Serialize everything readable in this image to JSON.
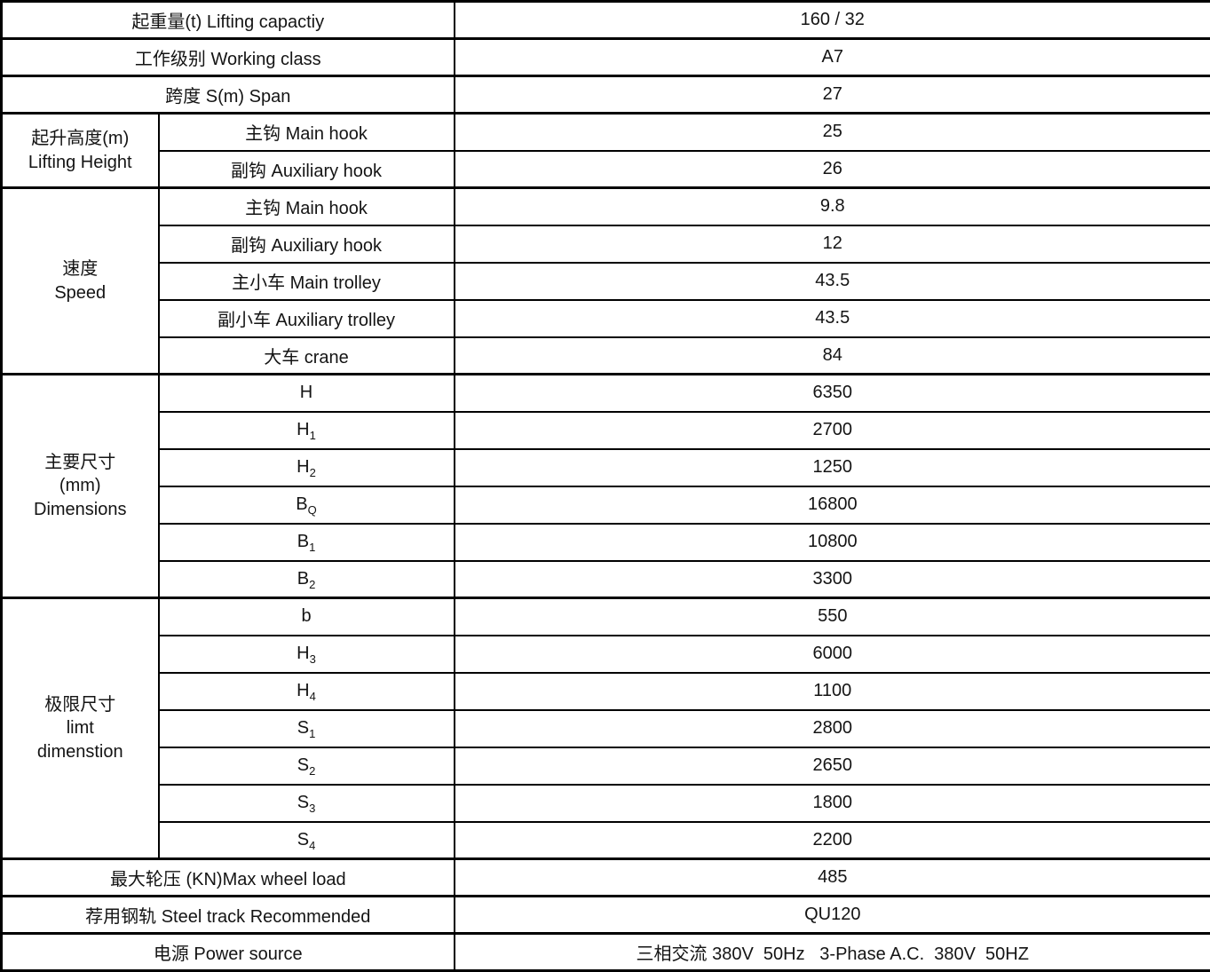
{
  "colors": {
    "border": "#000000",
    "text": "#141414",
    "background": "#ffffff"
  },
  "table": {
    "sections": [
      {
        "key": "lifting-capacity",
        "label": "起重量(t) Lifting capactiy",
        "value": "160 / 32"
      },
      {
        "key": "working-class",
        "label": "工作级别 Working class",
        "value": "A7"
      },
      {
        "key": "span",
        "label": "跨度 S(m) Span",
        "value": "27"
      },
      {
        "key": "lifting-height",
        "label_lines": [
          "起升高度(m)",
          "Lifting Height"
        ],
        "rows": [
          {
            "key": "main-hook",
            "label": "主钩 Main hook",
            "value": "25"
          },
          {
            "key": "auxiliary-hook",
            "label": "副钩 Auxiliary hook",
            "value": "26"
          }
        ]
      },
      {
        "key": "speed",
        "label_lines": [
          "速度",
          "Speed"
        ],
        "rows": [
          {
            "key": "main-hook",
            "label": "主钩 Main hook",
            "value": "9.8"
          },
          {
            "key": "auxiliary-hook",
            "label": "副钩 Auxiliary hook",
            "value": "12"
          },
          {
            "key": "main-trolley",
            "label": "主小车 Main trolley",
            "value": "43.5"
          },
          {
            "key": "auxiliary-trolley",
            "label": "副小车 Auxiliary trolley",
            "value": "43.5"
          },
          {
            "key": "crane",
            "label": "大车 crane",
            "value": "84"
          }
        ]
      },
      {
        "key": "dimensions",
        "label_lines": [
          "主要尺寸",
          "(mm)",
          "Dimensions"
        ],
        "rows": [
          {
            "key": "h",
            "label": "H",
            "value": "6350"
          },
          {
            "key": "h1",
            "label": "H",
            "sub": "1",
            "value": "2700"
          },
          {
            "key": "h2",
            "label": "H",
            "sub": "2",
            "value": "1250"
          },
          {
            "key": "bq",
            "label": "B",
            "sub": "Q",
            "value": "16800"
          },
          {
            "key": "b1",
            "label": "B",
            "sub": "1",
            "value": "10800"
          },
          {
            "key": "b2",
            "label": "B",
            "sub": "2",
            "value": "3300"
          }
        ]
      },
      {
        "key": "limit-dimension",
        "label_lines": [
          "极限尺寸",
          "limt",
          "dimenstion"
        ],
        "rows": [
          {
            "key": "b",
            "label": "b",
            "value": "550"
          },
          {
            "key": "h3",
            "label": "H",
            "sub": "3",
            "value": "6000"
          },
          {
            "key": "h4",
            "label": "H",
            "sub": "4",
            "value": "1100"
          },
          {
            "key": "s1",
            "label": "S",
            "sub": "1",
            "value": "2800"
          },
          {
            "key": "s2",
            "label": "S",
            "sub": "2",
            "value": "2650"
          },
          {
            "key": "s3",
            "label": "S",
            "sub": "3",
            "value": "1800"
          },
          {
            "key": "s4",
            "label": "S",
            "sub": "4",
            "value": "2200"
          }
        ]
      },
      {
        "key": "max-wheel-load",
        "label": "最大轮压 (KN)Max wheel load",
        "value": "485"
      },
      {
        "key": "steel-track",
        "label": "荐用钢轨 Steel track Recommended",
        "value": "QU120"
      },
      {
        "key": "power-source",
        "label": "电源 Power source",
        "value": "三相交流 380V  50Hz   3-Phase A.C.  380V  50HZ"
      }
    ]
  }
}
